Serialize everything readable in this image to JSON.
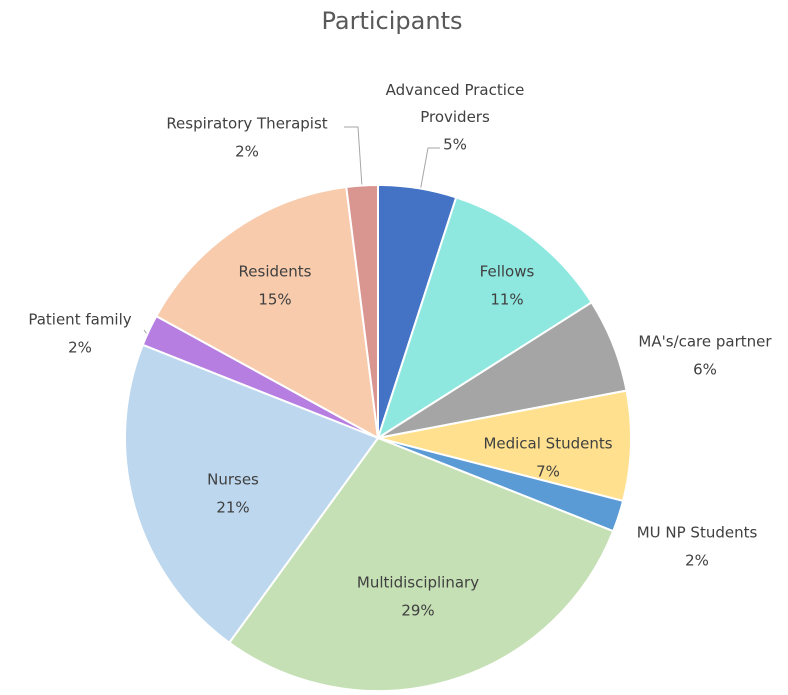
{
  "chart_data": {
    "type": "pie",
    "title": "Participants",
    "categories": [
      "Advanced Practice Providers",
      "Fellows",
      "MA's/care partner",
      "Medical Students",
      "MU NP Students",
      "Multidisciplinary",
      "Nurses",
      "Patient family",
      "Residents",
      "Respiratory Therapist"
    ],
    "values": [
      5,
      11,
      6,
      7,
      2,
      29,
      21,
      2,
      15,
      2
    ],
    "value_labels": [
      "5%",
      "11%",
      "6%",
      "7%",
      "2%",
      "29%",
      "21%",
      "2%",
      "15%",
      "2%"
    ],
    "colors": [
      "#4472c4",
      "#8ee8e0",
      "#a5a5a5",
      "#ffe08f",
      "#5b9bd5",
      "#c5e0b4",
      "#bdd7ee",
      "#b57ee0",
      "#f8cbad",
      "#d9958f"
    ]
  }
}
